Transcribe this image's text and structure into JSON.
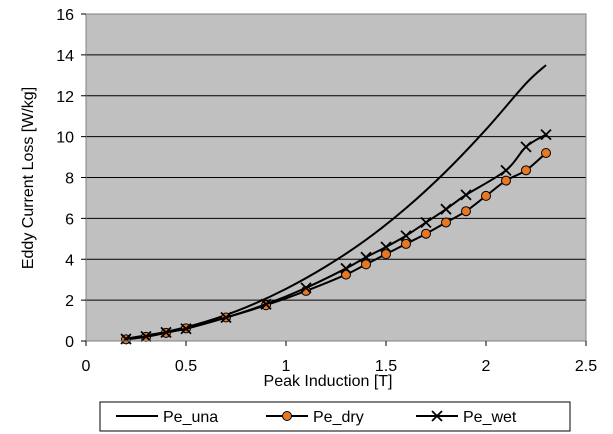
{
  "chart_data": {
    "type": "line",
    "xlabel": "Peak Induction [T]",
    "ylabel": "Eddy Current  Loss [W/kg]",
    "xlim": [
      0,
      2.5
    ],
    "ylim": [
      0,
      16
    ],
    "xticks": [
      0,
      0.5,
      1,
      1.5,
      2,
      2.5
    ],
    "xtick_labels": [
      "0",
      "0.5",
      "1",
      "1.5",
      "2",
      "2.5"
    ],
    "yticks": [
      0,
      2,
      4,
      6,
      8,
      10,
      12,
      14,
      16
    ],
    "ytick_labels": [
      "0",
      "2",
      "4",
      "6",
      "8",
      "10",
      "12",
      "14",
      "16"
    ],
    "grid": "horizontal",
    "plot_background": "#c0c0c0",
    "legend_position": "bottom",
    "series": [
      {
        "name": "Pe_una",
        "marker": "none",
        "color": "#000000",
        "x": [
          0.2,
          0.4,
          0.6,
          0.8,
          1.0,
          1.2,
          1.4,
          1.6,
          1.8,
          2.0,
          2.2,
          2.3
        ],
        "y": [
          0.12,
          0.45,
          0.95,
          1.65,
          2.55,
          3.65,
          4.95,
          6.5,
          8.3,
          10.35,
          12.6,
          13.5
        ]
      },
      {
        "name": "Pe_dry",
        "marker": "circle",
        "color": "#000000",
        "marker_fill": "#e87722",
        "x": [
          0.2,
          0.3,
          0.4,
          0.5,
          0.7,
          0.9,
          1.1,
          1.3,
          1.4,
          1.5,
          1.6,
          1.7,
          1.8,
          1.9,
          2.0,
          2.1,
          2.2,
          2.3
        ],
        "y": [
          0.08,
          0.2,
          0.4,
          0.62,
          1.15,
          1.75,
          2.45,
          3.25,
          3.75,
          4.25,
          4.75,
          5.25,
          5.8,
          6.35,
          7.1,
          7.85,
          8.35,
          9.2
        ]
      },
      {
        "name": "Pe_wet",
        "marker": "x",
        "color": "#000000",
        "x": [
          0.2,
          0.3,
          0.4,
          0.5,
          0.7,
          0.9,
          1.1,
          1.3,
          1.4,
          1.5,
          1.6,
          1.7,
          1.8,
          1.9,
          2.1,
          2.2,
          2.3
        ],
        "y": [
          0.1,
          0.22,
          0.42,
          0.6,
          1.15,
          1.8,
          2.6,
          3.55,
          4.1,
          4.6,
          5.15,
          5.8,
          6.45,
          7.15,
          8.35,
          9.5,
          10.1
        ]
      }
    ]
  }
}
